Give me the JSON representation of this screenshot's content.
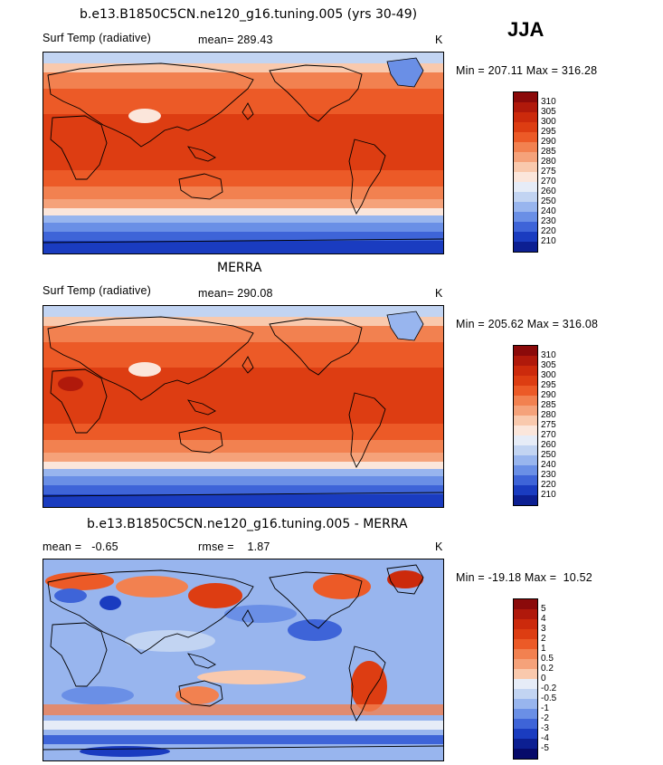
{
  "season": "JJA",
  "panels": [
    {
      "title": "b.e13.B1850C5CN.ne120_g16.tuning.005 (yrs 30-49)",
      "left_text": "Surf Temp (radiative)",
      "center_text": "mean= 289.43",
      "unit": "K",
      "minmax": "Min = 207.11 Max = 316.28",
      "colorbar": {
        "levels": [
          "310",
          "305",
          "300",
          "295",
          "290",
          "285",
          "280",
          "275",
          "270",
          "260",
          "250",
          "240",
          "230",
          "220",
          "210"
        ],
        "colors": [
          "#8b0a0a",
          "#b0190b",
          "#cc2a0c",
          "#dd3d12",
          "#ec5a27",
          "#f28150",
          "#f5a27a",
          "#f9c9ad",
          "#fbe6db",
          "#e6ecf7",
          "#c2d4f2",
          "#98b5ee",
          "#6a8fe6",
          "#3e64d8",
          "#1a3cc0",
          "#0c1f92"
        ]
      }
    },
    {
      "title": "MERRA",
      "left_text": "Surf Temp (radiative)",
      "center_text": "mean= 290.08",
      "unit": "K",
      "minmax": "Min = 205.62 Max = 316.08",
      "colorbar": {
        "levels": [
          "310",
          "305",
          "300",
          "295",
          "290",
          "285",
          "280",
          "275",
          "270",
          "260",
          "250",
          "240",
          "230",
          "220",
          "210"
        ],
        "colors": [
          "#8b0a0a",
          "#b0190b",
          "#cc2a0c",
          "#dd3d12",
          "#ec5a27",
          "#f28150",
          "#f5a27a",
          "#f9c9ad",
          "#fbe6db",
          "#e6ecf7",
          "#c2d4f2",
          "#98b5ee",
          "#6a8fe6",
          "#3e64d8",
          "#1a3cc0",
          "#0c1f92"
        ]
      }
    },
    {
      "title": "b.e13.B1850C5CN.ne120_g16.tuning.005 - MERRA",
      "left_text": "mean =   -0.65",
      "center_text": "rmse =    1.87",
      "unit": "K",
      "minmax": "Min = -19.18 Max =  10.52",
      "colorbar": {
        "levels": [
          "5",
          "4",
          "3",
          "2",
          "1",
          "0.5",
          "0.2",
          "0",
          "-0.2",
          "-0.5",
          "-1",
          "-2",
          "-3",
          "-4",
          "-5"
        ],
        "colors": [
          "#8b0a0a",
          "#b0190b",
          "#cc2a0c",
          "#dd3d12",
          "#ec5a27",
          "#f28150",
          "#f5a27a",
          "#f9c9ad",
          "#e6ecf7",
          "#c2d4f2",
          "#98b5ee",
          "#6a8fe6",
          "#3e64d8",
          "#1a3cc0",
          "#0c1f92",
          "#060a6a"
        ]
      }
    }
  ]
}
